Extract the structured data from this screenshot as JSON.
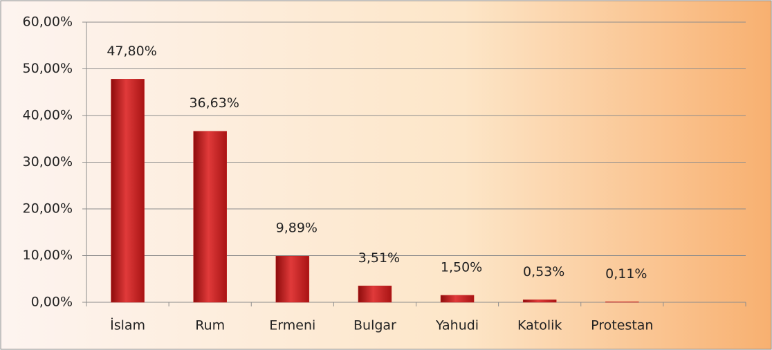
{
  "chart_data": {
    "type": "bar",
    "categories": [
      "İslam",
      "Rum",
      "Ermeni",
      "Bulgar",
      "Yahudi",
      "Katolik",
      "Protestan",
      null
    ],
    "values": [
      47.8,
      36.63,
      9.89,
      3.51,
      1.5,
      0.53,
      0.11,
      null
    ],
    "value_labels": [
      "47,80%",
      "36,63%",
      "9,89%",
      "3,51%",
      "1,50%",
      "0,53%",
      "0,11%",
      null
    ],
    "color": "#c41e1e",
    "ylim": [
      0,
      60
    ],
    "yticks": [
      {
        "value": 0,
        "label": "0,00%"
      },
      {
        "value": 10,
        "label": "10,00%"
      },
      {
        "value": 20,
        "label": "20,00%"
      },
      {
        "value": 30,
        "label": "30,00%"
      },
      {
        "value": 40,
        "label": "40,00%"
      },
      {
        "value": 50,
        "label": "50,00%"
      },
      {
        "value": 60,
        "label": "60,00%"
      }
    ],
    "grid": true
  }
}
